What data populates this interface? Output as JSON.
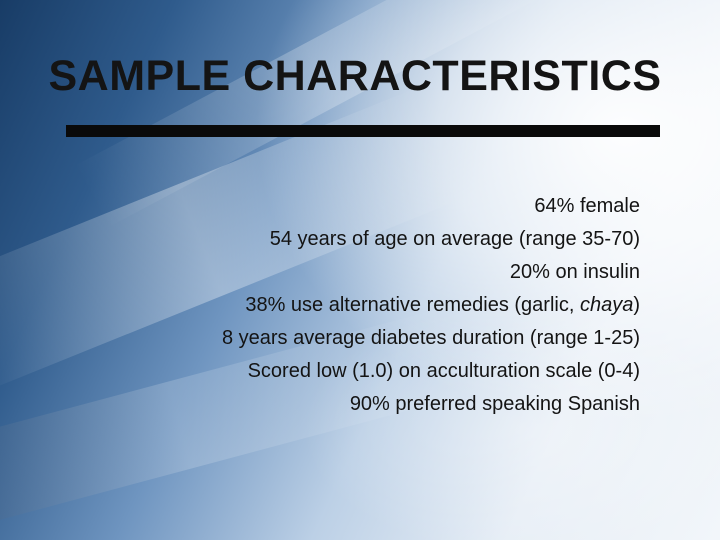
{
  "slide": {
    "title": "SAMPLE CHARACTERISTICS",
    "bullets": [
      "64% female",
      "54 years of age on average (range 35-70)",
      "20% on insulin",
      {
        "before": "38% use alternative remedies (garlic, ",
        "italic": "chaya",
        "after": ")"
      },
      "8 years average diabetes duration (range 1-25)",
      "Scored low (1.0) on acculturation scale (0-4)",
      "90% preferred speaking Spanish"
    ]
  },
  "colors": {
    "text": "#141414",
    "rule": "#0a0a0a",
    "background_dark": "#183c66",
    "background_light": "#f2f6fa"
  }
}
